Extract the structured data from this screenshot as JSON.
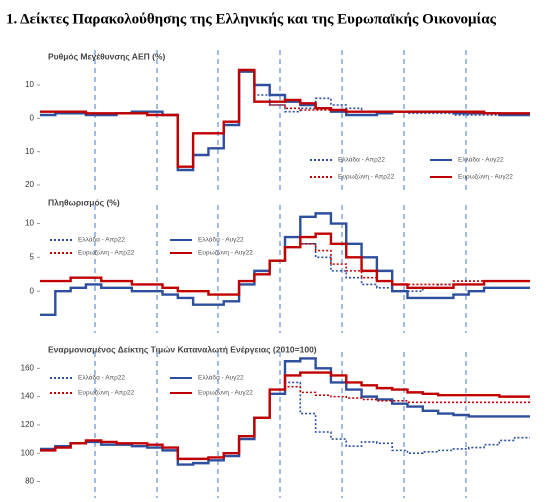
{
  "title": "1. Δείκτες Παρακολούθησης της Ελληνικής και της Ευρωπαϊκής Οικονομίας",
  "chart_data": [
    {
      "type": "line",
      "title": "Ρυθμός Μεγέθυνσης ΑΕΠ (%)",
      "categories": [
        null,
        null,
        null,
        null,
        null,
        null,
        null,
        null,
        null,
        null,
        null,
        null,
        null,
        null,
        null,
        null,
        null,
        null,
        null,
        null,
        null,
        null,
        null,
        null,
        null,
        null,
        null,
        null,
        null,
        null,
        null,
        null
      ],
      "ylim": [
        -20,
        19
      ],
      "yticks": [
        {
          "value": 10,
          "label": "10"
        },
        0,
        {
          "value": -10,
          "label": "10"
        },
        {
          "value": -20,
          "label": "20"
        }
      ],
      "legend": "lower right",
      "series": [
        {
          "name": "Ελλάδα - Απρ22",
          "color": "#2e4e9e",
          "style": "dotted",
          "values": [
            1,
            1.5,
            1.5,
            1,
            1,
            1.5,
            2,
            2,
            1,
            -15.5,
            -11,
            -9,
            -2,
            14,
            7,
            4,
            2,
            3,
            6,
            4,
            3,
            2,
            2,
            2,
            1.5,
            1.5,
            1.5,
            1,
            1,
            1,
            1,
            1
          ]
        },
        {
          "name": "Ελλάδα - Αυγ22",
          "color": "#2e4e9e",
          "style": "solid",
          "values": [
            1,
            1.5,
            1.5,
            1,
            1,
            1.5,
            2,
            2,
            1,
            -15.5,
            -11,
            -9,
            -2,
            14,
            10,
            7,
            5,
            4,
            3,
            2,
            1,
            1,
            1.5,
            2,
            2,
            2,
            2,
            1.5,
            1.5,
            1.5,
            1,
            1
          ]
        },
        {
          "name": "Ευρωζώνη - Απρ22",
          "color": "#c00000",
          "style": "dotted",
          "values": [
            2,
            2,
            2,
            1.5,
            1.5,
            1.5,
            1.5,
            1,
            1,
            -14.5,
            -4.5,
            -4.5,
            -1,
            14.5,
            5,
            4,
            3,
            2.5,
            2.5,
            2.5,
            2,
            2,
            2,
            2,
            2,
            2,
            2,
            2,
            1.5,
            1.5,
            1.5,
            1.5
          ]
        },
        {
          "name": "Ευρωζώνη - Αυγ22",
          "color": "#c00000",
          "style": "solid",
          "values": [
            2,
            2,
            2,
            1.5,
            1.5,
            1.5,
            1.5,
            1,
            1,
            -14.5,
            -4.5,
            -4.5,
            -1,
            14.5,
            5,
            5,
            5.5,
            4.5,
            3,
            2.5,
            2,
            2,
            2,
            2,
            2,
            2,
            2,
            2,
            2,
            1.5,
            1.5,
            1.5
          ]
        }
      ]
    },
    {
      "type": "line",
      "title": "Πληθωρισμός (%)",
      "categories": [
        null,
        null,
        null,
        null,
        null,
        null,
        null,
        null,
        null,
        null,
        null,
        null,
        null,
        null,
        null,
        null,
        null,
        null,
        null,
        null,
        null,
        null,
        null,
        null,
        null,
        null,
        null,
        null,
        null,
        null,
        null,
        null
      ],
      "ylim": [
        -5,
        12
      ],
      "yticks": [
        0,
        5,
        10
      ],
      "legend": "upper left",
      "series": [
        {
          "name": "Ελλάδα - Απρ22",
          "color": "#2e4e9e",
          "style": "dotted",
          "values": [
            -3.5,
            0,
            0.5,
            1,
            0.5,
            0.5,
            0,
            0,
            -0.5,
            -1,
            -2,
            -2,
            -1.5,
            1,
            3,
            4.5,
            8,
            7,
            5,
            3,
            2,
            1,
            0.5,
            0,
            0,
            0.5,
            1,
            1,
            1,
            1.5,
            1.5,
            1.5
          ]
        },
        {
          "name": "Ελλάδα - Αυγ22",
          "color": "#2e4e9e",
          "style": "solid",
          "values": [
            -3.5,
            0,
            0.5,
            1,
            0.5,
            0.5,
            0,
            0,
            -0.5,
            -1,
            -2,
            -2,
            -1.5,
            1,
            3,
            4.5,
            8,
            11,
            11.5,
            10,
            7,
            5,
            3,
            0,
            -1,
            -1,
            -1,
            -0.5,
            0,
            0.5,
            0.5,
            0.5
          ]
        },
        {
          "name": "Ευρωζώνη - Απρ22",
          "color": "#c00000",
          "style": "dotted",
          "values": [
            1.5,
            1.5,
            2,
            2,
            1.5,
            1.5,
            1,
            1,
            0.5,
            0,
            0,
            -0.5,
            -0.5,
            1.5,
            2.5,
            4.5,
            6.5,
            7,
            6,
            4,
            3,
            2,
            1.5,
            1,
            1,
            1,
            1,
            1.5,
            1.5,
            1.5,
            1.5,
            1.5
          ]
        },
        {
          "name": "Ευρωζώνη - Αυγ22",
          "color": "#c00000",
          "style": "solid",
          "values": [
            1.5,
            1.5,
            2,
            2,
            1.5,
            1.5,
            1,
            1,
            0.5,
            0,
            0,
            -0.5,
            -0.5,
            1.5,
            2.5,
            4.5,
            6.5,
            8,
            8.5,
            7,
            5,
            3,
            1.5,
            1,
            0.5,
            0.5,
            0.5,
            1,
            1,
            1.5,
            1.5,
            1.5
          ]
        }
      ]
    },
    {
      "type": "line",
      "title": "Εναρμονισμένος Δείκτης Τιμών Καταναλωτή Ενέργειας (2010=100)",
      "categories": [
        null,
        null,
        null,
        null,
        null,
        null,
        null,
        null,
        null,
        null,
        null,
        null,
        null,
        null,
        null,
        null,
        null,
        null,
        null,
        null,
        null,
        null,
        null,
        null,
        null,
        null,
        null,
        null,
        null,
        null,
        null,
        null
      ],
      "ylim": [
        74,
        168
      ],
      "yticks": [
        80,
        100,
        120,
        140,
        160
      ],
      "legend": "upper left",
      "series": [
        {
          "name": "Ελλάδα - Απρ22",
          "color": "#2e4e9e",
          "style": "dotted",
          "values": [
            103,
            105,
            107,
            108,
            106,
            106,
            105,
            104,
            102,
            92,
            93,
            95,
            98,
            110,
            125,
            142,
            150,
            128,
            115,
            110,
            105,
            108,
            107,
            102,
            100,
            101,
            102,
            103,
            104,
            106,
            109,
            111
          ]
        },
        {
          "name": "Ελλάδα - Αυγ22",
          "color": "#2e4e9e",
          "style": "solid",
          "values": [
            103,
            105,
            107,
            108,
            106,
            106,
            105,
            104,
            102,
            92,
            93,
            95,
            98,
            110,
            125,
            142,
            165,
            167,
            160,
            150,
            145,
            140,
            138,
            135,
            133,
            130,
            128,
            127,
            126,
            126,
            126,
            126
          ]
        },
        {
          "name": "Ευρωζώνη - Απρ22",
          "color": "#c00000",
          "style": "dotted",
          "values": [
            102,
            104,
            107,
            109,
            108,
            107,
            107,
            106,
            104,
            96,
            96,
            97,
            100,
            112,
            125,
            145,
            147,
            143,
            141,
            140,
            139,
            138,
            137,
            137,
            136,
            136,
            136,
            136,
            136,
            136,
            136,
            136
          ]
        },
        {
          "name": "Ευρωζώνη - Αυγ22",
          "color": "#c00000",
          "style": "solid",
          "values": [
            102,
            104,
            107,
            109,
            108,
            107,
            107,
            106,
            104,
            96,
            96,
            97,
            100,
            112,
            125,
            145,
            155,
            157,
            157,
            155,
            150,
            148,
            146,
            145,
            143,
            142,
            141,
            141,
            141,
            141,
            140,
            140
          ]
        }
      ]
    }
  ]
}
